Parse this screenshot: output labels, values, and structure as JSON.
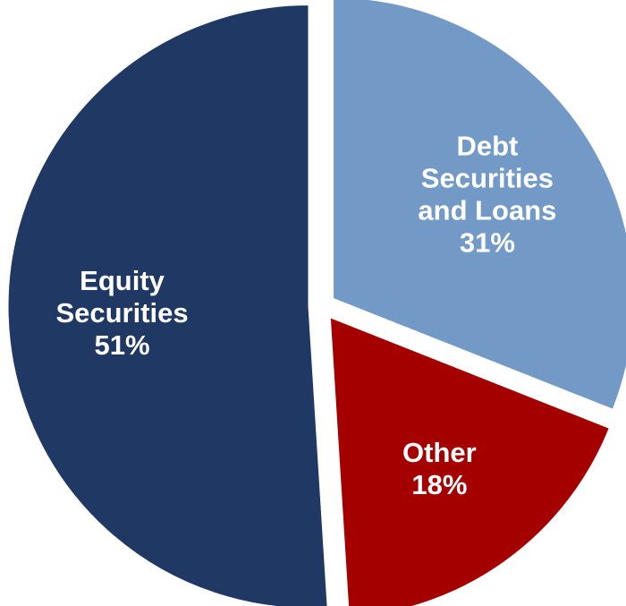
{
  "chart_data": {
    "type": "pie",
    "title": "",
    "slices": [
      {
        "label_lines": [
          "Debt",
          "Securities",
          "and Loans"
        ],
        "value": 31,
        "value_label": "31%",
        "color": "#7399c6"
      },
      {
        "label_lines": [
          "Other"
        ],
        "value": 18,
        "value_label": "18%",
        "color": "#a50000"
      },
      {
        "label_lines": [
          "Equity",
          "Securities"
        ],
        "value": 51,
        "value_label": "51%",
        "color": "#1f3864"
      }
    ],
    "start_angle_deg": 0,
    "direction": "clockwise",
    "exploded": true,
    "separator_color": "#ffffff"
  }
}
